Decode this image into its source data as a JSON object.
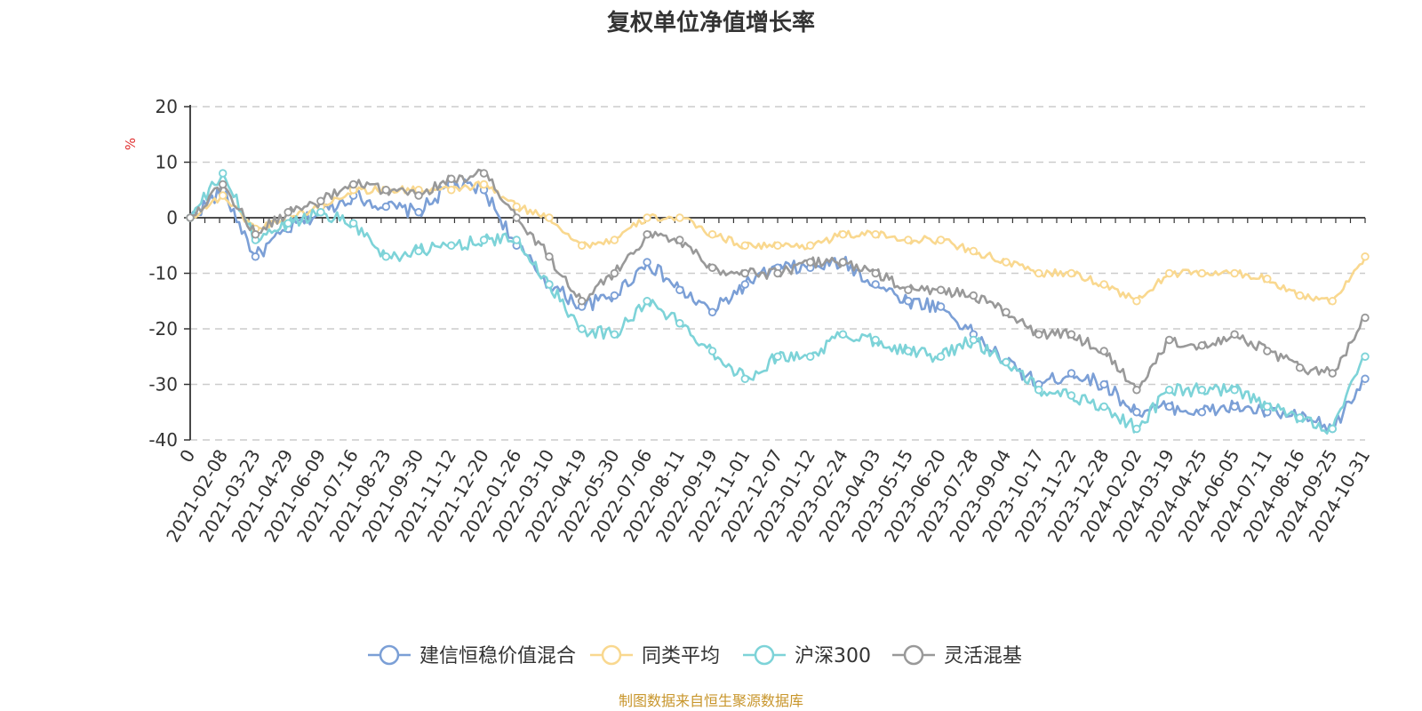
{
  "chart_data": {
    "type": "line",
    "title": "复权单位净值增长率",
    "ylabel": "%",
    "xlabel": "",
    "ylim": [
      -40,
      20
    ],
    "yticks": [
      20,
      10,
      0,
      -10,
      -20,
      -30,
      -40
    ],
    "grid": true,
    "legend_position": "bottom",
    "source": "制图数据来自恒生聚源数据库",
    "categories": [
      "0",
      "2021-02-08",
      "2021-03-23",
      "2021-04-29",
      "2021-06-09",
      "2021-07-16",
      "2021-08-23",
      "2021-09-30",
      "2021-11-12",
      "2021-12-20",
      "2022-01-26",
      "2022-03-10",
      "2022-04-19",
      "2022-05-30",
      "2022-07-06",
      "2022-08-11",
      "2022-09-19",
      "2022-11-01",
      "2022-12-07",
      "2023-01-12",
      "2023-02-24",
      "2023-04-03",
      "2023-05-15",
      "2023-06-20",
      "2023-07-28",
      "2023-09-04",
      "2023-10-17",
      "2023-11-22",
      "2023-12-28",
      "2024-02-02",
      "2024-03-19",
      "2024-04-25",
      "2024-06-05",
      "2024-07-11",
      "2024-08-16",
      "2024-09-25",
      "2024-10-31"
    ],
    "series": [
      {
        "name": "建信恒稳价值混合",
        "color": "#7b9fd6",
        "values": [
          0,
          5,
          -7,
          -2,
          1,
          4,
          2,
          1,
          6,
          5,
          -5,
          -12,
          -16,
          -14,
          -8,
          -13,
          -17,
          -12,
          -9,
          -9,
          -8,
          -12,
          -15,
          -16,
          -21,
          -26,
          -30,
          -28,
          -30,
          -35,
          -34,
          -35,
          -34,
          -35,
          -36,
          -38,
          -29
        ]
      },
      {
        "name": "同类平均",
        "color": "#f9d88f",
        "values": [
          0,
          4,
          -2,
          0,
          2,
          5,
          5,
          5,
          5,
          6,
          2,
          0,
          -5,
          -4,
          0,
          0,
          -3,
          -5,
          -5,
          -5,
          -3,
          -3,
          -4,
          -4,
          -6,
          -8,
          -10,
          -10,
          -12,
          -15,
          -10,
          -10,
          -10,
          -11,
          -14,
          -15,
          -7
        ]
      },
      {
        "name": "沪深300",
        "color": "#7dd3d8",
        "values": [
          0,
          8,
          -4,
          -1,
          1,
          -1,
          -7,
          -6,
          -5,
          -4,
          -4,
          -12,
          -20,
          -21,
          -15,
          -19,
          -24,
          -29,
          -25,
          -25,
          -21,
          -22,
          -24,
          -25,
          -22,
          -26,
          -31,
          -32,
          -34,
          -38,
          -31,
          -31,
          -31,
          -34,
          -36,
          -38,
          -25
        ]
      },
      {
        "name": "灵活混基",
        "color": "#999999",
        "values": [
          0,
          6,
          -3,
          1,
          3,
          6,
          5,
          4,
          7,
          8,
          0,
          -7,
          -15,
          -10,
          -3,
          -4,
          -9,
          -10,
          -10,
          -8,
          -8,
          -10,
          -13,
          -13,
          -14,
          -17,
          -21,
          -21,
          -24,
          -31,
          -22,
          -23,
          -21,
          -24,
          -27,
          -28,
          -18
        ]
      }
    ]
  }
}
